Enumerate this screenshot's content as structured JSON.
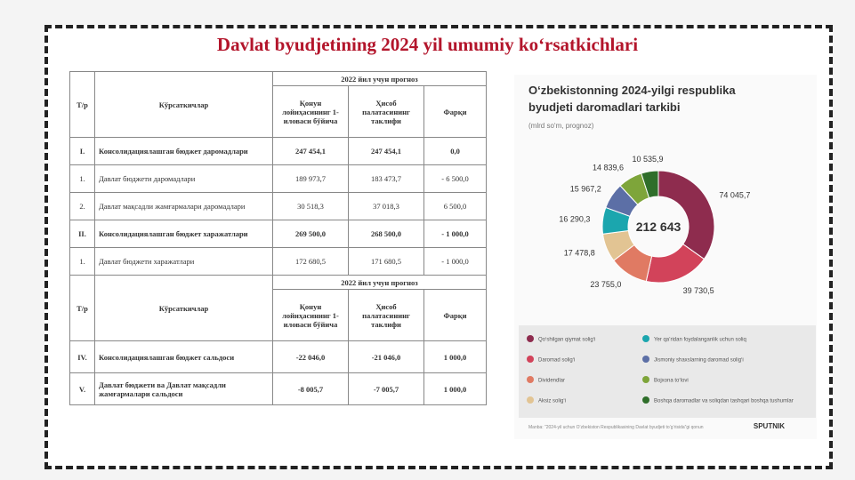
{
  "header": {
    "title": "Davlat byudjetining 2024 yil umumiy koʻrsatkichlari"
  },
  "table": {
    "header": {
      "num": "Т/р",
      "indicator": "Кўрсаткичлар",
      "group": "2022 йил учун прогноз",
      "columns": [
        "Қонун лойиҳасининг 1-иловаси бўйича",
        "Ҳисоб палатасининг таклифи",
        "Фарқи"
      ]
    },
    "sections": [
      {
        "rows": [
          {
            "num": "I.",
            "label": "Консолидациялашган бюджет даромадлари",
            "bold": true,
            "values": [
              "247 454,1",
              "247 454,1",
              "0,0"
            ]
          },
          {
            "num": "1.",
            "label": "Давлат бюджети даромадлари",
            "bold": false,
            "values": [
              "189 973,7",
              "183 473,7",
              "- 6 500,0"
            ]
          },
          {
            "num": "2.",
            "label": "Давлат мақсадли жамғармалари даромадлари",
            "bold": false,
            "values": [
              "30 518,3",
              "37 018,3",
              "6 500,0"
            ]
          },
          {
            "num": "II.",
            "label": "Консолидациялашган бюджет харажатлари",
            "bold": true,
            "values": [
              "269 500,0",
              "268 500,0",
              "- 1 000,0"
            ]
          },
          {
            "num": "1.",
            "label": "Давлат бюджети харажатлари",
            "bold": false,
            "values": [
              "172 680,5",
              "171 680,5",
              "- 1 000,0"
            ]
          }
        ]
      },
      {
        "rows": [
          {
            "num": "IV.",
            "label": "Консолидациялашган бюджет сальдоси",
            "bold": true,
            "values": [
              "-22 046,0",
              "-21 046,0",
              "1 000,0"
            ]
          },
          {
            "num": "V.",
            "label": "Давлат бюджети ва Давлат мақсадли жамғармалари сальдоси",
            "bold": true,
            "values": [
              "-8 005,7",
              "-7 005,7",
              "1 000,0"
            ]
          }
        ]
      }
    ]
  },
  "chart_data": {
    "type": "donut",
    "title": "O‘zbekistonning 2024-yilgi respublika byudjeti daromadlari tarkibi",
    "subtitle": "(mlrd so‘m, prognoz)",
    "center_label": "212 643",
    "categories": [
      "Qo‘shilgan qiymat solig‘i",
      "Daromad solig‘i",
      "Dividendlar",
      "Aksiz solig‘i",
      "Yer qa’ridan foydalanganlik uchun soliq",
      "Jismoniy shaxslarning daromad solig‘i",
      "Bojxona to‘lovi",
      "Boshqa daromadlar va soliqdan tashqari boshqa tushumlar"
    ],
    "values": [
      74045.7,
      39730.5,
      23755.0,
      17478.8,
      16290.3,
      15967.2,
      14839.6,
      10535.9
    ],
    "value_labels": [
      "74 045,7",
      "39 730,5",
      "23 755,0",
      "17 478,8",
      "16 290,3",
      "15 967,2",
      "14 839,6",
      "10 535,9"
    ],
    "colors": [
      "#8e2c4e",
      "#d2435a",
      "#e07a63",
      "#e2c493",
      "#1ba6ae",
      "#5c6fa6",
      "#7ea53a",
      "#2f6e2a"
    ],
    "source": "Manba: “2024-yil uchun O‘zbekiston Respublikasining Davlat byudjeti to‘g‘risida”gi qonun",
    "logo": "SPUTNIK"
  }
}
